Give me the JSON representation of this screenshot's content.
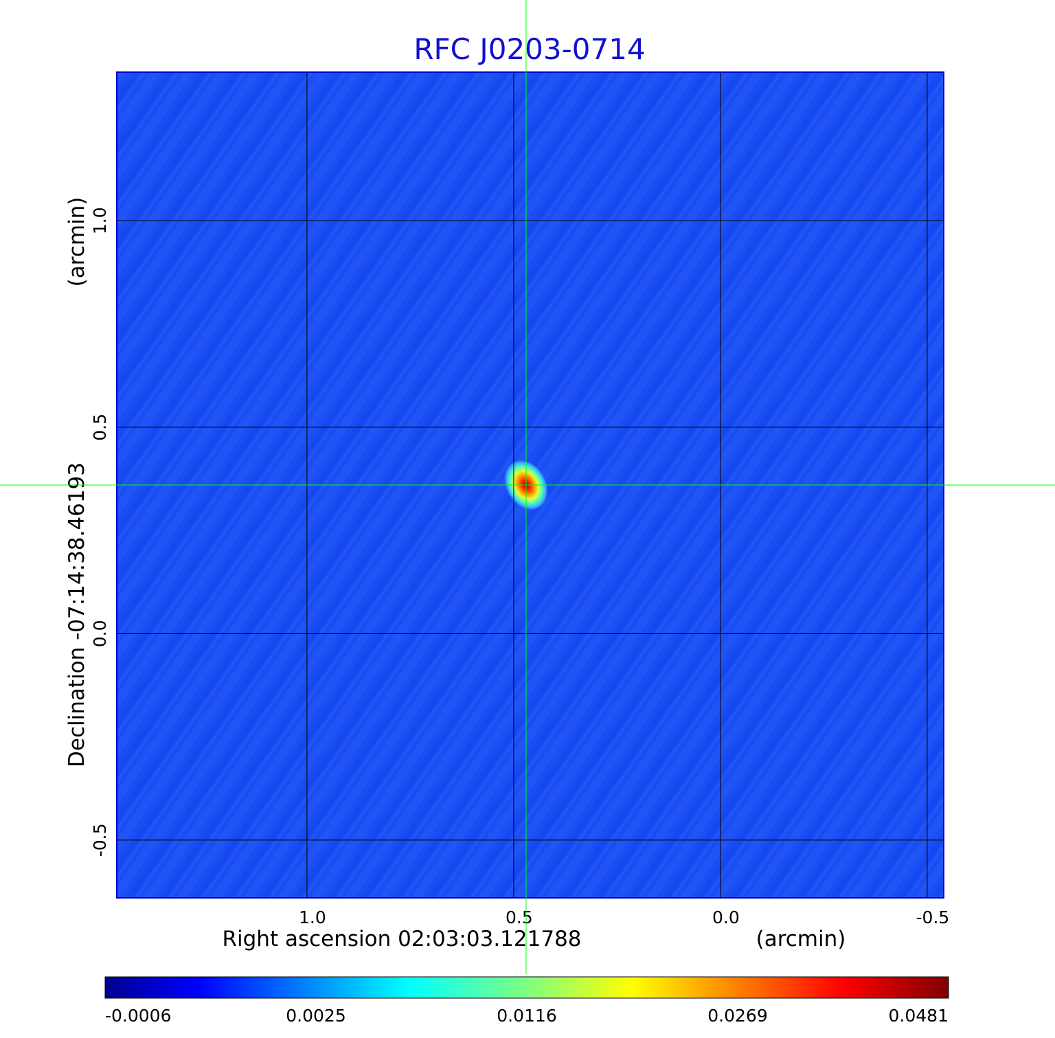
{
  "chart_data": {
    "type": "heatmap",
    "title": "RFC J0203-0714",
    "xaxis": {
      "label_coord": "Right ascension  02:03:03.121788",
      "label_unit": "(arcmin)",
      "ticks": [
        1.0,
        0.5,
        0.0,
        -0.5
      ],
      "tick_labels": [
        "1.0",
        "0.5",
        "0.0",
        "-0.5"
      ],
      "range": [
        1.46,
        -0.54
      ]
    },
    "yaxis": {
      "label_coord": "Declination  -07:14:38.46193",
      "label_unit": "(arcmin)",
      "ticks": [
        1.0,
        0.5,
        0.0,
        -0.5
      ],
      "tick_labels": [
        "1.0",
        "0.5",
        "0.0",
        "-0.5"
      ],
      "range": [
        -0.64,
        1.36
      ]
    },
    "grid": true,
    "crosshair": {
      "x": 0.47,
      "y": 0.36,
      "color": "#00ff00"
    },
    "source": {
      "x": 0.47,
      "y": 0.36,
      "peak": 0.0481
    },
    "colorbar": {
      "orientation": "horizontal",
      "colormap": "jet",
      "tick_labels": [
        "-0.0006",
        "0.0025",
        "0.0116",
        "0.0269",
        "0.0481"
      ],
      "min": -0.0006,
      "max": 0.0481
    },
    "colors": {
      "background_field": "#1a4ef5",
      "grid": "#000000",
      "crosshair": "#00ff00",
      "title": "#1010d0"
    }
  }
}
